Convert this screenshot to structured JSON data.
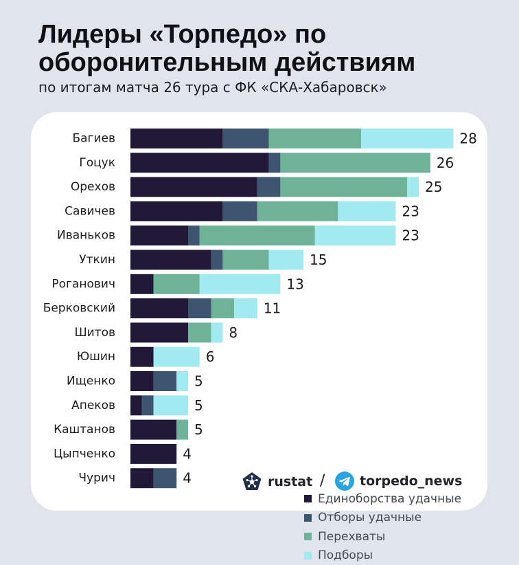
{
  "header": {
    "title": "Лидеры «Торпедо» по оборонительным действиям",
    "subtitle": "по итогам матча 26 тура с ФК «СКА-Хабаровск»"
  },
  "chart_data": {
    "type": "bar",
    "orientation": "horizontal",
    "stacked": true,
    "categories": [
      "Багиев",
      "Гоцук",
      "Орехов",
      "Савичев",
      "Иваньков",
      "Уткин",
      "Роганович",
      "Берковский",
      "Шитов",
      "Юшин",
      "Ищенко",
      "Апеков",
      "Каштанов",
      "Цыпченко",
      "Чурич"
    ],
    "series": [
      {
        "name": "Единоборства удачные",
        "color": "#211937",
        "values": [
          8,
          12,
          11,
          8,
          5,
          7,
          2,
          5,
          5,
          2,
          2,
          1,
          4,
          4,
          2
        ]
      },
      {
        "name": "Отборы удачные",
        "color": "#3e5570",
        "values": [
          4,
          1,
          2,
          3,
          1,
          1,
          0,
          2,
          0,
          0,
          2,
          1,
          0,
          0,
          2
        ]
      },
      {
        "name": "Перехваты",
        "color": "#6fb29a",
        "values": [
          8,
          13,
          11,
          7,
          10,
          4,
          4,
          2,
          2,
          0,
          0,
          0,
          1,
          0,
          0
        ]
      },
      {
        "name": "Подборы",
        "color": "#a3e9f0",
        "values": [
          8,
          0,
          1,
          5,
          7,
          3,
          7,
          2,
          1,
          4,
          1,
          3,
          0,
          0,
          0
        ]
      }
    ],
    "totals": [
      28,
      26,
      25,
      23,
      23,
      15,
      13,
      11,
      8,
      6,
      5,
      5,
      5,
      4,
      4
    ],
    "legend": "bottom-right",
    "grid": false
  },
  "footer": {
    "rustat": "rustat",
    "slash": "/",
    "telegram": "torpedo_news"
  },
  "icons": {
    "rustat_logo": "rustat-pentagon-icon",
    "telegram_logo": "telegram-icon"
  }
}
